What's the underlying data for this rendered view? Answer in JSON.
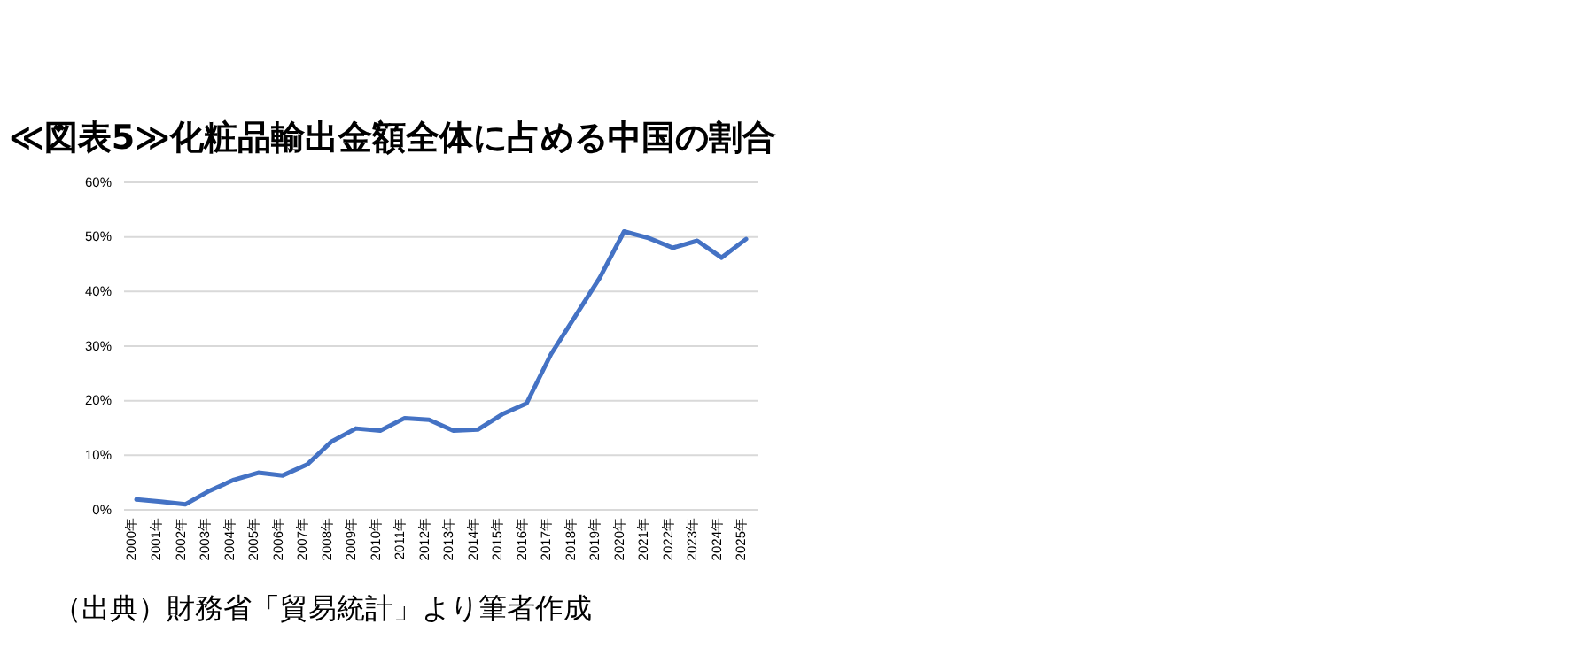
{
  "chart_data": {
    "type": "line",
    "title": "≪図表5≫化粧品輸出金額全体に占める中国の割合",
    "categories": [
      "2000年",
      "2001年",
      "2002年",
      "2003年",
      "2004年",
      "2005年",
      "2006年",
      "2007年",
      "2008年",
      "2009年",
      "2010年",
      "2011年",
      "2012年",
      "2013年",
      "2014年",
      "2015年",
      "2016年",
      "2017年",
      "2018年",
      "2019年",
      "2020年",
      "2021年",
      "2022年",
      "2023年",
      "2024年",
      "2025年"
    ],
    "series": [
      {
        "color": "#4472c4",
        "values": [
          1.9,
          1.5,
          1.0,
          3.5,
          5.5,
          6.8,
          6.3,
          8.3,
          12.5,
          14.9,
          14.5,
          16.8,
          16.5,
          14.5,
          14.7,
          17.5,
          19.5,
          28.5,
          35.5,
          42.5,
          51,
          49.8,
          48,
          49.3,
          46.2,
          49.6
        ]
      }
    ],
    "ylim": [
      0,
      60
    ],
    "yticks": [
      {
        "value": 0,
        "label": "0%"
      },
      {
        "value": 10,
        "label": "10%"
      },
      {
        "value": 20,
        "label": "20%"
      },
      {
        "value": 30,
        "label": "30%"
      },
      {
        "value": 40,
        "label": "40%"
      },
      {
        "value": 50,
        "label": "50%"
      },
      {
        "value": 60,
        "label": "60%"
      }
    ],
    "grid": "y",
    "marker": "none",
    "line_style": "solid",
    "annotations": [
      "（出典）財務省「貿易統計」より筆者作成"
    ]
  }
}
